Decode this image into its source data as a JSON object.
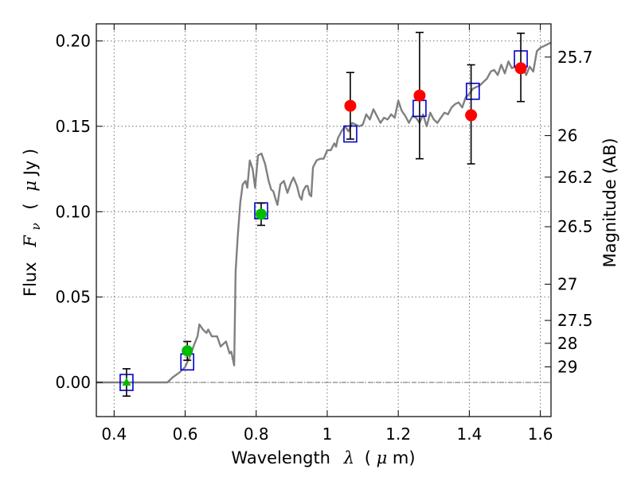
{
  "chart_data": {
    "type": "scatter",
    "xlabel_text": "Wavelength",
    "xlabel_lambda": "λ",
    "xlabel_unit_open": "(",
    "xlabel_unit_mu": "μ",
    "xlabel_unit_m": "m)",
    "ylabel_text": "Flux",
    "ylabel_F": "F",
    "ylabel_nu": "ν",
    "ylabel_paren_open": "(",
    "ylabel_mu": "μ",
    "ylabel_unit": "Jy )",
    "y2label": "Magnitude (AB)",
    "xlim": [
      0.35,
      1.63
    ],
    "ylim": [
      -0.02,
      0.21
    ],
    "x_ticks": [
      {
        "value": 0.4,
        "label": "0.4"
      },
      {
        "value": 0.6,
        "label": "0.6"
      },
      {
        "value": 0.8,
        "label": "0.8"
      },
      {
        "value": 1.0,
        "label": "1"
      },
      {
        "value": 1.2,
        "label": "1.2"
      },
      {
        "value": 1.4,
        "label": "1.4"
      },
      {
        "value": 1.6,
        "label": "1.6"
      }
    ],
    "y_ticks": [
      {
        "value": 0.0,
        "label": "0.00"
      },
      {
        "value": 0.05,
        "label": "0.05"
      },
      {
        "value": 0.1,
        "label": "0.10"
      },
      {
        "value": 0.15,
        "label": "0.15"
      },
      {
        "value": 0.2,
        "label": "0.20"
      }
    ],
    "mag_ticks": [
      {
        "mag": 25.7,
        "label": "25.7"
      },
      {
        "mag": 26.0,
        "label": "26"
      },
      {
        "mag": 26.2,
        "label": "26.2"
      },
      {
        "mag": 26.5,
        "label": "26.5"
      },
      {
        "mag": 27.0,
        "label": "27"
      },
      {
        "mag": 27.5,
        "label": "27.5"
      },
      {
        "mag": 28.0,
        "label": "28"
      },
      {
        "mag": 29.0,
        "label": "29"
      }
    ],
    "colors": {
      "sed": "#808080",
      "model_box": "#0000cc",
      "hst": "#00bb00",
      "ir": "#ff0000",
      "error_bar": "#000000",
      "zero_line": "#555555"
    },
    "sed_model": [
      [
        0.35,
        0.0
      ],
      [
        0.55,
        0.0
      ],
      [
        0.565,
        0.003
      ],
      [
        0.585,
        0.006
      ],
      [
        0.6,
        0.009
      ],
      [
        0.615,
        0.016
      ],
      [
        0.625,
        0.022
      ],
      [
        0.635,
        0.027
      ],
      [
        0.64,
        0.034
      ],
      [
        0.65,
        0.031
      ],
      [
        0.66,
        0.029
      ],
      [
        0.665,
        0.031
      ],
      [
        0.675,
        0.027
      ],
      [
        0.69,
        0.027
      ],
      [
        0.7,
        0.021
      ],
      [
        0.715,
        0.024
      ],
      [
        0.725,
        0.017
      ],
      [
        0.73,
        0.018
      ],
      [
        0.735,
        0.013
      ],
      [
        0.738,
        0.01
      ],
      [
        0.742,
        0.065
      ],
      [
        0.748,
        0.085
      ],
      [
        0.755,
        0.105
      ],
      [
        0.762,
        0.116
      ],
      [
        0.77,
        0.118
      ],
      [
        0.775,
        0.114
      ],
      [
        0.782,
        0.13
      ],
      [
        0.79,
        0.125
      ],
      [
        0.797,
        0.114
      ],
      [
        0.805,
        0.133
      ],
      [
        0.815,
        0.134
      ],
      [
        0.825,
        0.128
      ],
      [
        0.835,
        0.118
      ],
      [
        0.842,
        0.113
      ],
      [
        0.848,
        0.112
      ],
      [
        0.855,
        0.107
      ],
      [
        0.86,
        0.104
      ],
      [
        0.868,
        0.116
      ],
      [
        0.878,
        0.118
      ],
      [
        0.888,
        0.111
      ],
      [
        0.898,
        0.117
      ],
      [
        0.905,
        0.12
      ],
      [
        0.915,
        0.115
      ],
      [
        0.922,
        0.109
      ],
      [
        0.928,
        0.107
      ],
      [
        0.932,
        0.112
      ],
      [
        0.94,
        0.115
      ],
      [
        0.945,
        0.115
      ],
      [
        0.95,
        0.11
      ],
      [
        0.955,
        0.109
      ],
      [
        0.96,
        0.126
      ],
      [
        0.97,
        0.13
      ],
      [
        0.98,
        0.131
      ],
      [
        0.99,
        0.131
      ],
      [
        1.0,
        0.136
      ],
      [
        1.01,
        0.136
      ],
      [
        1.02,
        0.14
      ],
      [
        1.025,
        0.138
      ],
      [
        1.03,
        0.143
      ],
      [
        1.04,
        0.147
      ],
      [
        1.05,
        0.15
      ],
      [
        1.06,
        0.147
      ],
      [
        1.07,
        0.152
      ],
      [
        1.08,
        0.151
      ],
      [
        1.09,
        0.15
      ],
      [
        1.1,
        0.151
      ],
      [
        1.11,
        0.157
      ],
      [
        1.12,
        0.154
      ],
      [
        1.13,
        0.16
      ],
      [
        1.14,
        0.156
      ],
      [
        1.15,
        0.152
      ],
      [
        1.16,
        0.155
      ],
      [
        1.17,
        0.154
      ],
      [
        1.18,
        0.157
      ],
      [
        1.19,
        0.155
      ],
      [
        1.2,
        0.165
      ],
      [
        1.21,
        0.159
      ],
      [
        1.22,
        0.156
      ],
      [
        1.23,
        0.152
      ],
      [
        1.24,
        0.156
      ],
      [
        1.25,
        0.155
      ],
      [
        1.26,
        0.152
      ],
      [
        1.27,
        0.157
      ],
      [
        1.28,
        0.15
      ],
      [
        1.29,
        0.158
      ],
      [
        1.3,
        0.154
      ],
      [
        1.31,
        0.152
      ],
      [
        1.32,
        0.155
      ],
      [
        1.33,
        0.158
      ],
      [
        1.34,
        0.157
      ],
      [
        1.35,
        0.161
      ],
      [
        1.36,
        0.163
      ],
      [
        1.37,
        0.164
      ],
      [
        1.38,
        0.161
      ],
      [
        1.39,
        0.167
      ],
      [
        1.4,
        0.169
      ],
      [
        1.41,
        0.172
      ],
      [
        1.42,
        0.173
      ],
      [
        1.43,
        0.174
      ],
      [
        1.44,
        0.176
      ],
      [
        1.45,
        0.178
      ],
      [
        1.46,
        0.182
      ],
      [
        1.47,
        0.183
      ],
      [
        1.48,
        0.18
      ],
      [
        1.49,
        0.186
      ],
      [
        1.5,
        0.181
      ],
      [
        1.51,
        0.188
      ],
      [
        1.52,
        0.184
      ],
      [
        1.53,
        0.185
      ],
      [
        1.54,
        0.186
      ],
      [
        1.55,
        0.185
      ],
      [
        1.56,
        0.18
      ],
      [
        1.57,
        0.185
      ],
      [
        1.58,
        0.182
      ],
      [
        1.59,
        0.194
      ],
      [
        1.6,
        0.196
      ],
      [
        1.61,
        0.197
      ],
      [
        1.63,
        0.199
      ]
    ],
    "model_points": [
      {
        "x": 0.435,
        "y": 0.0
      },
      {
        "x": 0.606,
        "y": 0.012
      },
      {
        "x": 0.814,
        "y": 0.1005
      },
      {
        "x": 1.065,
        "y": 0.1455
      },
      {
        "x": 1.26,
        "y": 0.1605
      },
      {
        "x": 1.41,
        "y": 0.1705
      },
      {
        "x": 1.545,
        "y": 0.1895
      }
    ],
    "hst_points": [
      {
        "x": 0.435,
        "y": 0.0,
        "err": 0.008,
        "marker": "triangle"
      },
      {
        "x": 0.606,
        "y": 0.0185,
        "err": 0.0055,
        "marker": "circle"
      },
      {
        "x": 0.814,
        "y": 0.0985,
        "err": 0.0065,
        "marker": "circle"
      }
    ],
    "ir_points": [
      {
        "x": 1.065,
        "y": 0.162,
        "err_lo": 0.0195,
        "err_hi": 0.0195
      },
      {
        "x": 1.26,
        "y": 0.168,
        "err_lo": 0.037,
        "err_hi": 0.037
      },
      {
        "x": 1.405,
        "y": 0.1565,
        "err_lo": 0.0285,
        "err_hi": 0.0295
      },
      {
        "x": 1.545,
        "y": 0.184,
        "err_lo": 0.0195,
        "err_hi": 0.0205
      }
    ]
  }
}
